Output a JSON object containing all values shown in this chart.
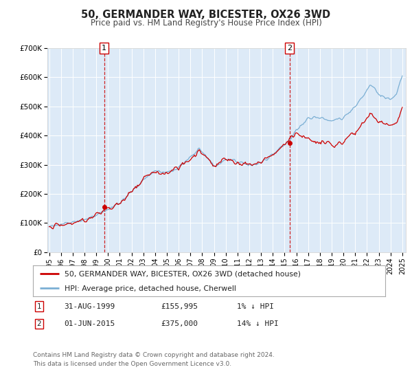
{
  "title": "50, GERMANDER WAY, BICESTER, OX26 3WD",
  "subtitle": "Price paid vs. HM Land Registry's House Price Index (HPI)",
  "ylim": [
    0,
    700000
  ],
  "yticks": [
    0,
    100000,
    200000,
    300000,
    400000,
    500000,
    600000,
    700000
  ],
  "ytick_labels": [
    "£0",
    "£100K",
    "£200K",
    "£300K",
    "£400K",
    "£500K",
    "£600K",
    "£700K"
  ],
  "hpi_color": "#7bafd4",
  "price_color": "#cc0000",
  "marker_color": "#cc0000",
  "vline_color": "#cc0000",
  "plot_bg": "#ddeaf7",
  "legend_label_price": "50, GERMANDER WAY, BICESTER, OX26 3WD (detached house)",
  "legend_label_hpi": "HPI: Average price, detached house, Cherwell",
  "annotation1_date": "31-AUG-1999",
  "annotation1_price": "£155,995",
  "annotation1_hpi": "1% ↓ HPI",
  "annotation2_date": "01-JUN-2015",
  "annotation2_price": "£375,000",
  "annotation2_hpi": "14% ↓ HPI",
  "footnote1": "Contains HM Land Registry data © Crown copyright and database right 2024.",
  "footnote2": "This data is licensed under the Open Government Licence v3.0.",
  "sale1_date_f": 1999.667,
  "sale1_price": 155995,
  "sale2_date_f": 2015.417,
  "sale2_price": 375000
}
